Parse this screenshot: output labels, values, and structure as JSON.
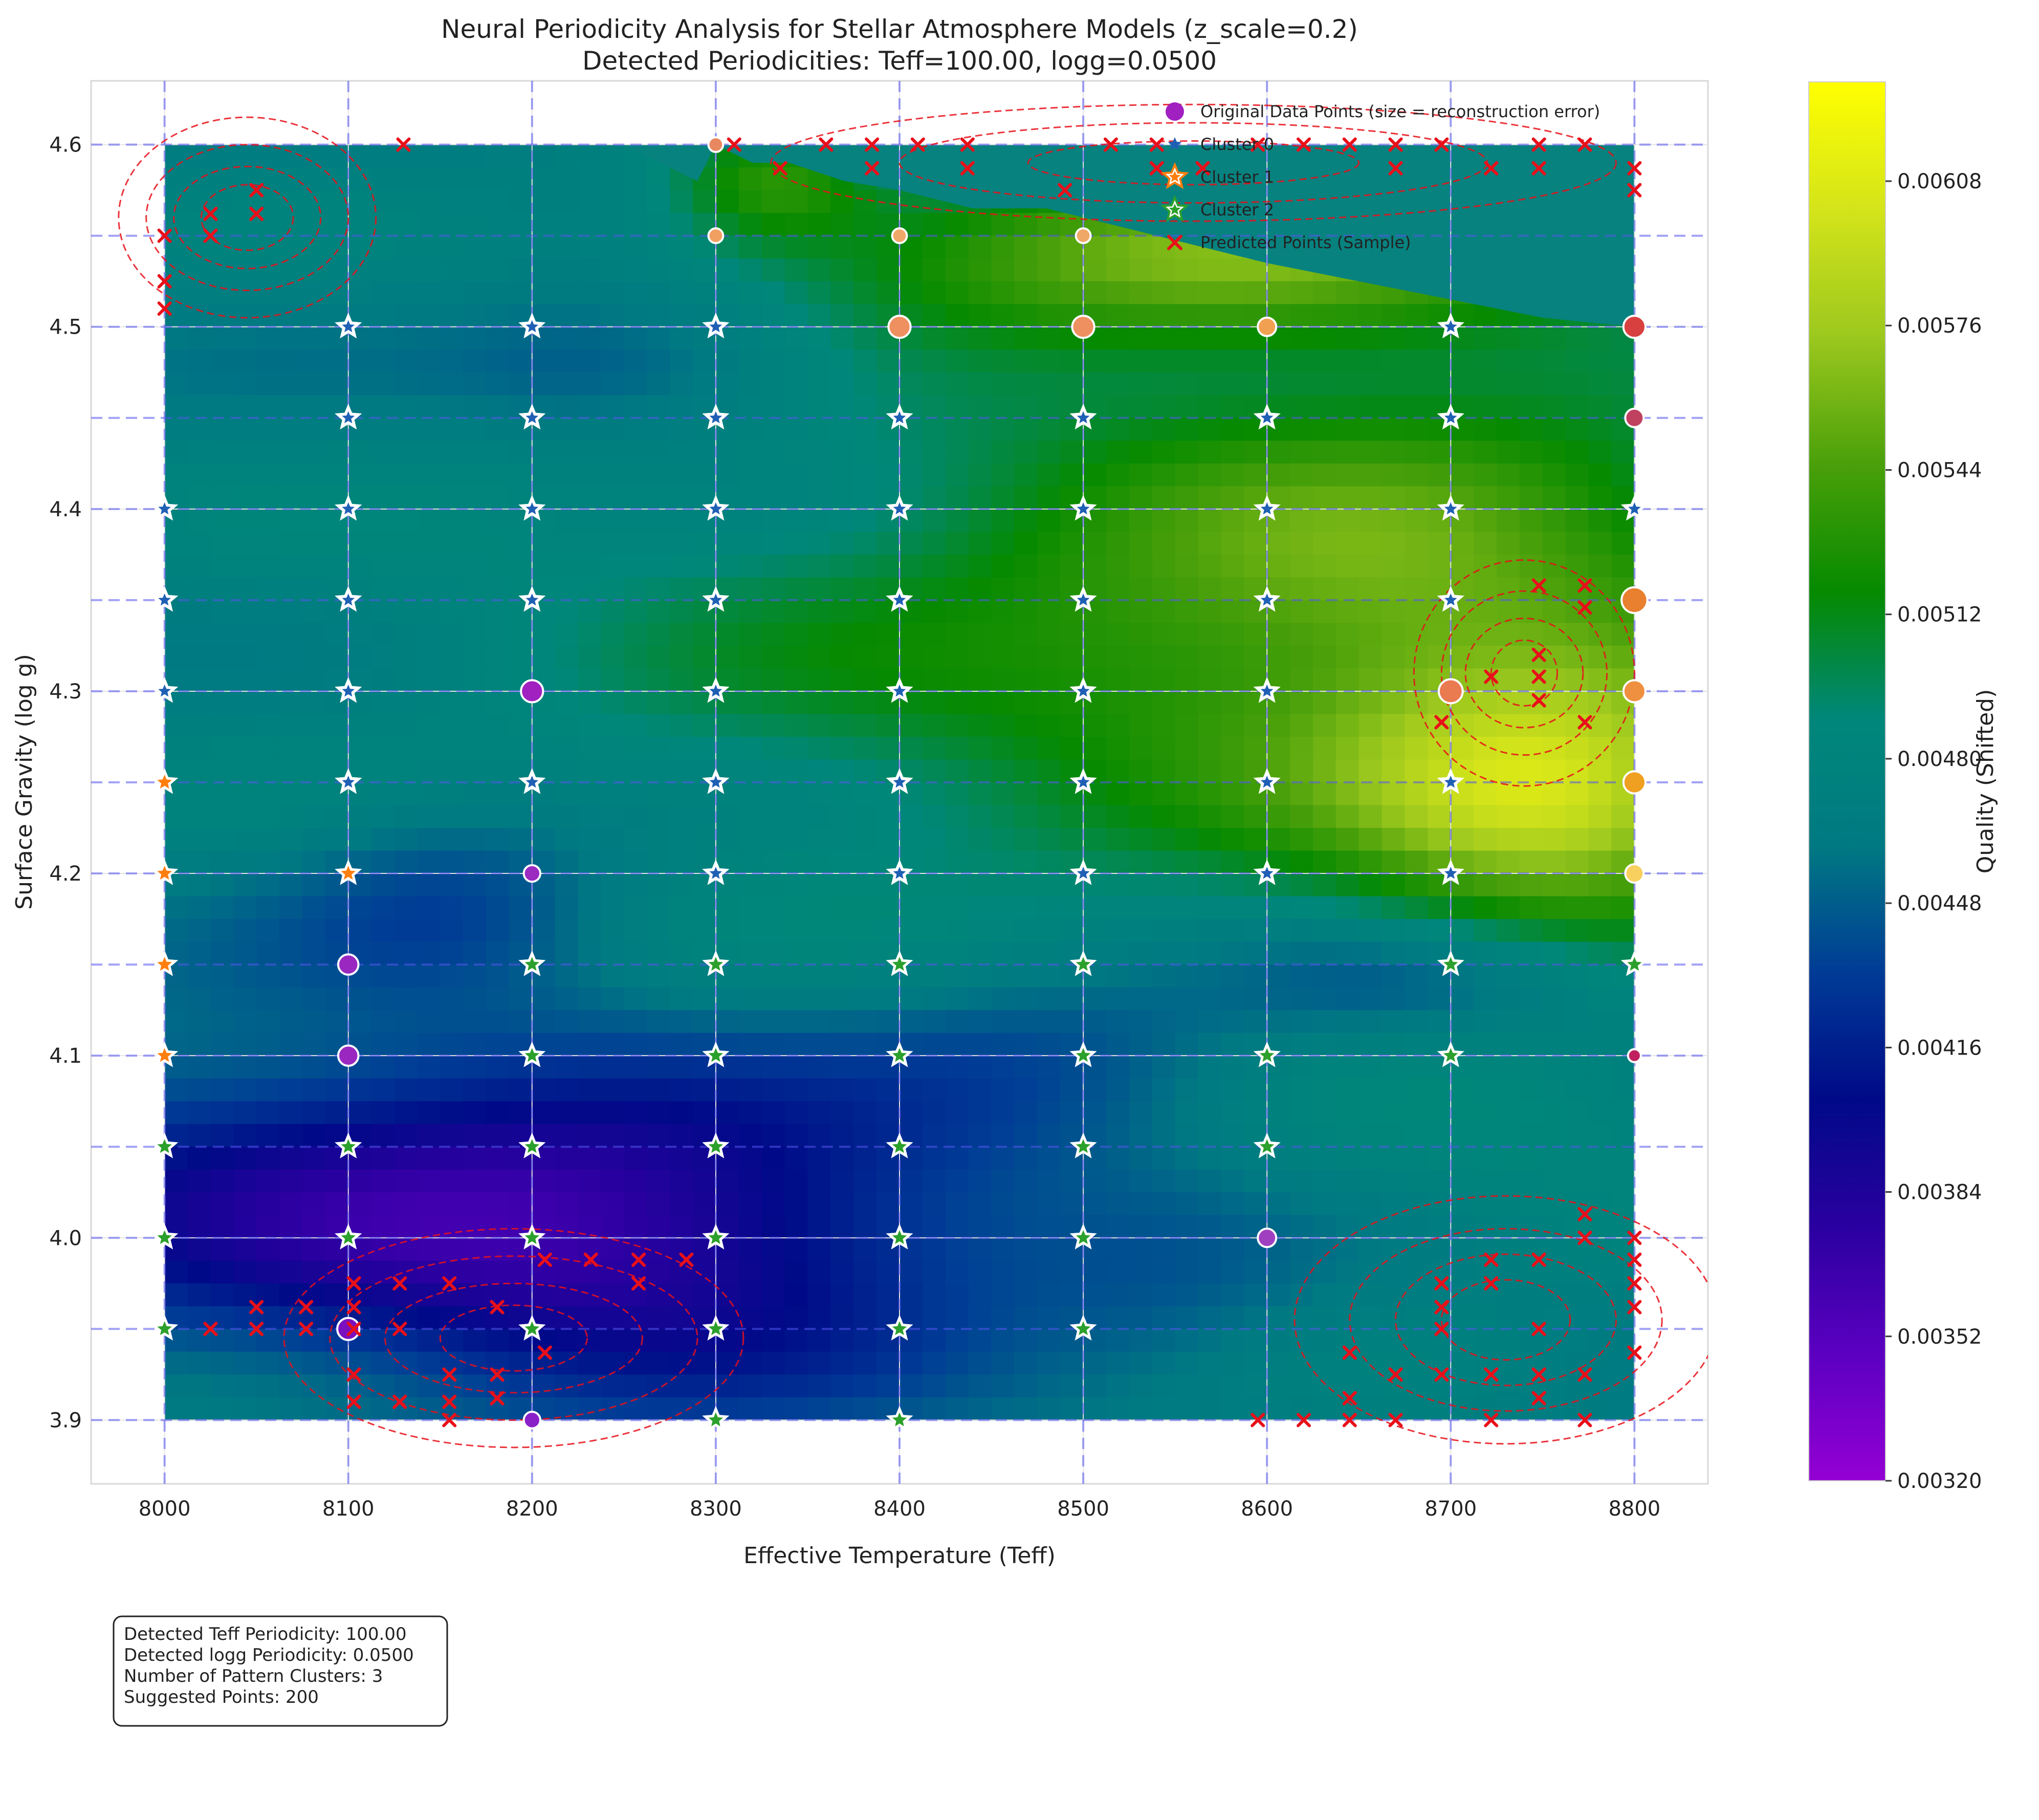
{
  "chart_data": {
    "type": "heatmap",
    "title": "Neural Periodicity Analysis for Stellar Atmosphere Models (z_scale=0.2)",
    "subtitle": "Detected Periodicities: Teff=100.00, logg=0.0500",
    "xlabel": "Effective Temperature (Teff)",
    "ylabel": "Surface Gravity (log g)",
    "xlim": [
      7960,
      8840
    ],
    "ylim": [
      3.865,
      4.635
    ],
    "x_ticks": [
      "8000",
      "8100",
      "8200",
      "8300",
      "8400",
      "8500",
      "8600",
      "8700",
      "8800"
    ],
    "y_ticks": [
      "3.9",
      "4.0",
      "4.1",
      "4.2",
      "4.3",
      "4.4",
      "4.5",
      "4.6"
    ],
    "grid": true,
    "periodic_gridlines": {
      "teff_step": 100,
      "logg_step": 0.05
    },
    "colorbar": {
      "label": "Quality (Shifted)",
      "min": 0.0032,
      "max": 0.0063,
      "ticks": [
        "0.00320",
        "0.00352",
        "0.00384",
        "0.00416",
        "0.00448",
        "0.00480",
        "0.00512",
        "0.00544",
        "0.00576",
        "0.00608"
      ],
      "colormap": [
        "#9400d3",
        "#5b00c0",
        "#2a00a0",
        "#000a88",
        "#003c96",
        "#007a82",
        "#00877a",
        "#068a00",
        "#4aa00a",
        "#9cc81e",
        "#d4e41a",
        "#ffff00"
      ]
    },
    "surface_bumps": [
      {
        "x": 8140,
        "y": 4.02,
        "sx": 180,
        "sy": 0.06,
        "a": -1.6
      },
      {
        "x": 8280,
        "y": 3.98,
        "sx": 120,
        "sy": 0.06,
        "a": -0.8
      },
      {
        "x": 8500,
        "y": 4.1,
        "sx": 90,
        "sy": 0.04,
        "a": -0.6
      },
      {
        "x": 8160,
        "y": 4.19,
        "sx": 70,
        "sy": 0.04,
        "a": -0.7
      },
      {
        "x": 8260,
        "y": 4.48,
        "sx": 80,
        "sy": 0.03,
        "a": -0.7
      },
      {
        "x": 8560,
        "y": 4.54,
        "sx": 160,
        "sy": 0.035,
        "a": 1.6
      },
      {
        "x": 8330,
        "y": 4.58,
        "sx": 40,
        "sy": 0.025,
        "a": 1.1
      },
      {
        "x": 8760,
        "y": 4.24,
        "sx": 80,
        "sy": 0.05,
        "a": 1.9
      },
      {
        "x": 8680,
        "y": 4.36,
        "sx": 140,
        "sy": 0.09,
        "a": 1.2
      },
      {
        "x": 8500,
        "y": 4.32,
        "sx": 260,
        "sy": 0.12,
        "a": 0.8
      },
      {
        "x": 8680,
        "y": 4.14,
        "sx": 70,
        "sy": 0.025,
        "a": -0.6
      },
      {
        "x": 8720,
        "y": 4.05,
        "sx": 120,
        "sy": 0.05,
        "a": 0.35
      },
      {
        "x": 8550,
        "y": 3.96,
        "sx": 60,
        "sy": 0.04,
        "a": -0.3
      }
    ],
    "top_mask_boundary": [
      [
        8250,
        4.6
      ],
      [
        8290,
        4.58
      ],
      [
        8300,
        4.6
      ],
      [
        8320,
        4.59
      ],
      [
        8340,
        4.59
      ],
      [
        8370,
        4.58
      ],
      [
        8400,
        4.575
      ],
      [
        8440,
        4.565
      ],
      [
        8480,
        4.565
      ],
      [
        8520,
        4.555
      ],
      [
        8560,
        4.545
      ],
      [
        8600,
        4.535
      ],
      [
        8650,
        4.525
      ],
      [
        8700,
        4.515
      ],
      [
        8750,
        4.505
      ],
      [
        8800,
        4.5
      ]
    ],
    "series": [
      {
        "name": "Original Data Points (size = reconstruction error)",
        "type": "scatter",
        "marker": "circle",
        "points": [
          [
            8200,
            4.3,
            1.2,
            "#a020c0"
          ],
          [
            8200,
            4.2,
            0.9,
            "#9a2ac0"
          ],
          [
            8100,
            4.15,
            1.1,
            "#9a28c0"
          ],
          [
            8100,
            4.1,
            1.1,
            "#9a28c0"
          ],
          [
            8100,
            3.95,
            1.2,
            "#7a10c0"
          ],
          [
            8200,
            3.9,
            0.9,
            "#8a20c8"
          ],
          [
            8600,
            4.0,
            1.0,
            "#a040c0"
          ],
          [
            8300,
            4.6,
            0.8,
            "#e88860"
          ],
          [
            8300,
            4.55,
            0.8,
            "#f0a060"
          ],
          [
            8400,
            4.55,
            0.8,
            "#f0a868"
          ],
          [
            8500,
            4.55,
            0.8,
            "#f0a868"
          ],
          [
            8400,
            4.5,
            1.2,
            "#ee9060"
          ],
          [
            8500,
            4.5,
            1.2,
            "#ee9060"
          ],
          [
            8600,
            4.5,
            1.0,
            "#f0a050"
          ],
          [
            8800,
            4.5,
            1.2,
            "#d84040"
          ],
          [
            8800,
            4.45,
            1.0,
            "#c04060"
          ],
          [
            8800,
            4.35,
            1.4,
            "#e88030"
          ],
          [
            8700,
            4.3,
            1.3,
            "#ea7a50"
          ],
          [
            8800,
            4.3,
            1.2,
            "#ee9040"
          ],
          [
            8800,
            4.25,
            1.2,
            "#f0a020"
          ],
          [
            8800,
            4.2,
            1.0,
            "#f8d060"
          ],
          [
            8800,
            4.1,
            0.7,
            "#c02060"
          ]
        ]
      },
      {
        "name": "Cluster 0",
        "type": "scatter",
        "marker": "star",
        "color": "#1f5fb4",
        "points": [
          [
            8100,
            4.5
          ],
          [
            8200,
            4.5
          ],
          [
            8300,
            4.5
          ],
          [
            8700,
            4.5
          ],
          [
            8100,
            4.45
          ],
          [
            8200,
            4.45
          ],
          [
            8300,
            4.45
          ],
          [
            8400,
            4.45
          ],
          [
            8500,
            4.45
          ],
          [
            8600,
            4.45
          ],
          [
            8700,
            4.45
          ],
          [
            8000,
            4.4
          ],
          [
            8100,
            4.4
          ],
          [
            8200,
            4.4
          ],
          [
            8300,
            4.4
          ],
          [
            8400,
            4.4
          ],
          [
            8500,
            4.4
          ],
          [
            8600,
            4.4
          ],
          [
            8700,
            4.4
          ],
          [
            8800,
            4.4
          ],
          [
            8000,
            4.35
          ],
          [
            8100,
            4.35
          ],
          [
            8200,
            4.35
          ],
          [
            8300,
            4.35
          ],
          [
            8400,
            4.35
          ],
          [
            8500,
            4.35
          ],
          [
            8600,
            4.35
          ],
          [
            8700,
            4.35
          ],
          [
            8000,
            4.3
          ],
          [
            8100,
            4.3
          ],
          [
            8300,
            4.3
          ],
          [
            8400,
            4.3
          ],
          [
            8500,
            4.3
          ],
          [
            8600,
            4.3
          ],
          [
            8100,
            4.25
          ],
          [
            8200,
            4.25
          ],
          [
            8300,
            4.25
          ],
          [
            8400,
            4.25
          ],
          [
            8500,
            4.25
          ],
          [
            8600,
            4.25
          ],
          [
            8700,
            4.25
          ],
          [
            8300,
            4.2
          ],
          [
            8400,
            4.2
          ],
          [
            8500,
            4.2
          ],
          [
            8600,
            4.2
          ],
          [
            8700,
            4.2
          ]
        ]
      },
      {
        "name": "Cluster 1",
        "type": "scatter",
        "marker": "star",
        "color": "#ff7f0e",
        "points": [
          [
            8000,
            4.25
          ],
          [
            8000,
            4.2
          ],
          [
            8100,
            4.2
          ],
          [
            8000,
            4.15
          ],
          [
            8000,
            4.1
          ]
        ]
      },
      {
        "name": "Cluster 2",
        "type": "scatter",
        "marker": "star",
        "color": "#2ca02c",
        "points": [
          [
            8200,
            4.15
          ],
          [
            8300,
            4.15
          ],
          [
            8400,
            4.15
          ],
          [
            8500,
            4.15
          ],
          [
            8700,
            4.15
          ],
          [
            8800,
            4.15
          ],
          [
            8200,
            4.1
          ],
          [
            8300,
            4.1
          ],
          [
            8400,
            4.1
          ],
          [
            8500,
            4.1
          ],
          [
            8600,
            4.1
          ],
          [
            8700,
            4.1
          ],
          [
            8000,
            4.05
          ],
          [
            8100,
            4.05
          ],
          [
            8200,
            4.05
          ],
          [
            8300,
            4.05
          ],
          [
            8400,
            4.05
          ],
          [
            8500,
            4.05
          ],
          [
            8600,
            4.05
          ],
          [
            8000,
            4.0
          ],
          [
            8100,
            4.0
          ],
          [
            8200,
            4.0
          ],
          [
            8300,
            4.0
          ],
          [
            8400,
            4.0
          ],
          [
            8500,
            4.0
          ],
          [
            8000,
            3.95
          ],
          [
            8200,
            3.95
          ],
          [
            8300,
            3.95
          ],
          [
            8400,
            3.95
          ],
          [
            8500,
            3.95
          ],
          [
            8300,
            3.9
          ],
          [
            8400,
            3.9
          ]
        ]
      },
      {
        "name": "Predicted Points (Sample)",
        "type": "scatter",
        "marker": "x",
        "color": "#e8101a",
        "points": [
          [
            8000,
            4.55
          ],
          [
            8000,
            4.525
          ],
          [
            8000,
            4.51
          ],
          [
            8025,
            4.562
          ],
          [
            8025,
            4.55
          ],
          [
            8050,
            4.575
          ],
          [
            8050,
            4.562
          ],
          [
            8130,
            4.6
          ],
          [
            8310,
            4.6
          ],
          [
            8335,
            4.587
          ],
          [
            8360,
            4.6
          ],
          [
            8385,
            4.6
          ],
          [
            8385,
            4.587
          ],
          [
            8410,
            4.6
          ],
          [
            8437,
            4.6
          ],
          [
            8437,
            4.587
          ],
          [
            8490,
            4.575
          ],
          [
            8515,
            4.6
          ],
          [
            8540,
            4.6
          ],
          [
            8540,
            4.587
          ],
          [
            8565,
            4.587
          ],
          [
            8595,
            4.6
          ],
          [
            8620,
            4.6
          ],
          [
            8645,
            4.6
          ],
          [
            8670,
            4.6
          ],
          [
            8670,
            4.587
          ],
          [
            8695,
            4.6
          ],
          [
            8722,
            4.587
          ],
          [
            8748,
            4.6
          ],
          [
            8748,
            4.587
          ],
          [
            8773,
            4.6
          ],
          [
            8800,
            4.587
          ],
          [
            8800,
            4.575
          ],
          [
            8748,
            4.358
          ],
          [
            8773,
            4.358
          ],
          [
            8773,
            4.346
          ],
          [
            8748,
            4.32
          ],
          [
            8722,
            4.308
          ],
          [
            8748,
            4.308
          ],
          [
            8748,
            4.295
          ],
          [
            8695,
            4.283
          ],
          [
            8773,
            4.283
          ],
          [
            8025,
            3.95
          ],
          [
            8050,
            3.962
          ],
          [
            8050,
            3.95
          ],
          [
            8077,
            3.962
          ],
          [
            8077,
            3.95
          ],
          [
            8103,
            3.975
          ],
          [
            8103,
            3.962
          ],
          [
            8103,
            3.95
          ],
          [
            8128,
            3.975
          ],
          [
            8128,
            3.95
          ],
          [
            8155,
            3.975
          ],
          [
            8181,
            3.962
          ],
          [
            8207,
            3.988
          ],
          [
            8232,
            3.988
          ],
          [
            8258,
            3.988
          ],
          [
            8258,
            3.975
          ],
          [
            8284,
            3.988
          ],
          [
            8207,
            3.937
          ],
          [
            8181,
            3.925
          ],
          [
            8155,
            3.925
          ],
          [
            8103,
            3.925
          ],
          [
            8103,
            3.91
          ],
          [
            8128,
            3.91
          ],
          [
            8155,
            3.91
          ],
          [
            8181,
            3.912
          ],
          [
            8155,
            3.9
          ],
          [
            8800,
            4.0
          ],
          [
            8800,
            3.988
          ],
          [
            8800,
            3.975
          ],
          [
            8800,
            3.962
          ],
          [
            8800,
            3.937
          ],
          [
            8773,
            4.013
          ],
          [
            8773,
            4.0
          ],
          [
            8748,
            3.988
          ],
          [
            8722,
            3.988
          ],
          [
            8722,
            3.975
          ],
          [
            8695,
            3.975
          ],
          [
            8695,
            3.962
          ],
          [
            8695,
            3.95
          ],
          [
            8748,
            3.95
          ],
          [
            8645,
            3.937
          ],
          [
            8670,
            3.925
          ],
          [
            8695,
            3.925
          ],
          [
            8722,
            3.925
          ],
          [
            8748,
            3.925
          ],
          [
            8773,
            3.925
          ],
          [
            8645,
            3.912
          ],
          [
            8748,
            3.912
          ],
          [
            8595,
            3.9
          ],
          [
            8620,
            3.9
          ],
          [
            8645,
            3.9
          ],
          [
            8670,
            3.9
          ],
          [
            8722,
            3.9
          ],
          [
            8773,
            3.9
          ]
        ]
      }
    ],
    "density_contours": [
      {
        "cx": 8045,
        "cy": 4.56,
        "rx": [
          25,
          40,
          55,
          70
        ],
        "ry": [
          0.018,
          0.028,
          0.04,
          0.055
        ]
      },
      {
        "cx": 8190,
        "cy": 3.945,
        "rx": [
          40,
          70,
          100,
          125
        ],
        "ry": [
          0.018,
          0.03,
          0.045,
          0.06
        ]
      },
      {
        "cx": 8740,
        "cy": 4.31,
        "rx": [
          18,
          32,
          45,
          60
        ],
        "ry": [
          0.018,
          0.03,
          0.045,
          0.062
        ]
      },
      {
        "cx": 8730,
        "cy": 3.955,
        "rx": [
          35,
          60,
          85,
          115
        ],
        "ry": [
          0.022,
          0.036,
          0.05,
          0.068
        ]
      },
      {
        "cx": 8560,
        "cy": 4.59,
        "rx": [
          90,
          160,
          230
        ],
        "ry": [
          0.012,
          0.022,
          0.032
        ]
      }
    ],
    "legend": {
      "position": "upper right",
      "entries": [
        "Original Data Points (size = reconstruction error)",
        "Cluster 0",
        "Cluster 1",
        "Cluster 2",
        "Predicted Points (Sample)"
      ]
    },
    "annotation": {
      "position": "lower left",
      "lines": [
        "Detected Teff Periodicity: 100.00",
        "Detected logg Periodicity: 0.0500",
        "Number of Pattern Clusters: 3",
        "Suggested Points: 200"
      ]
    }
  }
}
